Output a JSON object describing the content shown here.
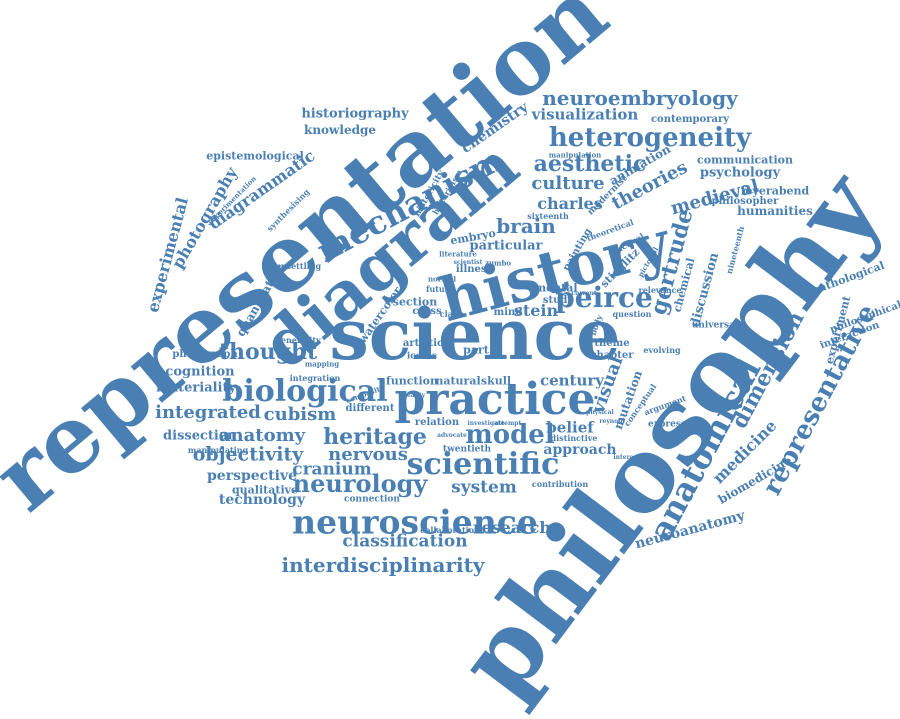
{
  "cloud": {
    "color": "#4a7fb3",
    "words": [
      {
        "text": "representation",
        "rot": -40
      },
      {
        "text": "philosophy",
        "rot": -53
      },
      {
        "text": "science",
        "rot": 0
      },
      {
        "text": "history",
        "rot": -15
      },
      {
        "text": "diagram",
        "rot": -40
      },
      {
        "text": "practice",
        "rot": 0
      },
      {
        "text": "mechanism",
        "rot": -28
      },
      {
        "text": "heterogeneity",
        "rot": 0
      },
      {
        "text": "neuroscience",
        "rot": 0
      },
      {
        "text": "biological",
        "rot": 0
      },
      {
        "text": "scientific",
        "rot": 0
      },
      {
        "text": "anatomical",
        "rot": -62
      },
      {
        "text": "representative",
        "rot": -62
      },
      {
        "text": "dimension",
        "rot": -62
      },
      {
        "text": "neuroembryology",
        "rot": 0
      },
      {
        "text": "peirce",
        "rot": 0
      },
      {
        "text": "model",
        "rot": 0
      },
      {
        "text": "heritage",
        "rot": 0
      },
      {
        "text": "neurology",
        "rot": 0
      },
      {
        "text": "thought",
        "rot": 0
      },
      {
        "text": "aesthetic",
        "rot": 0
      },
      {
        "text": "interdisciplinarity",
        "rot": 0
      },
      {
        "text": "classification",
        "rot": 0
      },
      {
        "text": "objectivity",
        "rot": 0
      },
      {
        "text": "nervous",
        "rot": 0
      },
      {
        "text": "integrated",
        "rot": 0
      },
      {
        "text": "cubism",
        "rot": 0
      },
      {
        "text": "anatomy",
        "rot": 0
      },
      {
        "text": "cranium",
        "rot": 0
      },
      {
        "text": "system",
        "rot": 0
      },
      {
        "text": "research",
        "rot": 0
      },
      {
        "text": "culture",
        "rot": 0
      },
      {
        "text": "charles",
        "rot": 0
      },
      {
        "text": "theories",
        "rot": -28
      },
      {
        "text": "medieval",
        "rot": -15
      },
      {
        "text": "brain",
        "rot": 0
      },
      {
        "text": "gertrude",
        "rot": -75
      },
      {
        "text": "visual",
        "rot": -70
      },
      {
        "text": "medicine",
        "rot": -45
      },
      {
        "text": "stein",
        "rot": 0
      },
      {
        "text": "century",
        "rot": 0
      },
      {
        "text": "belief",
        "rot": 0
      },
      {
        "text": "approach",
        "rot": 0
      },
      {
        "text": "technology",
        "rot": 0
      },
      {
        "text": "perspective",
        "rot": 0
      },
      {
        "text": "qualitative",
        "rot": 0
      },
      {
        "text": "dissection",
        "rot": 0
      },
      {
        "text": "materiality",
        "rot": 0
      },
      {
        "text": "cognition",
        "rot": 0
      },
      {
        "text": "photograph",
        "rot": 0
      },
      {
        "text": "experimental",
        "rot": -75
      },
      {
        "text": "photography",
        "rot": -60
      },
      {
        "text": "diagrammatic",
        "rot": -35
      },
      {
        "text": "quantitative",
        "rot": -60
      },
      {
        "text": "historiography",
        "rot": 0
      },
      {
        "text": "knowledge",
        "rot": 0
      },
      {
        "text": "epistemological",
        "rot": 0
      },
      {
        "text": "chemistry",
        "rot": -35
      },
      {
        "text": "visualization",
        "rot": 0
      },
      {
        "text": "contemporary",
        "rot": 0
      },
      {
        "text": "communication",
        "rot": 0
      },
      {
        "text": "psychology",
        "rot": 0
      },
      {
        "text": "animation",
        "rot": -30
      },
      {
        "text": "feyerabend",
        "rot": 0
      },
      {
        "text": "philosopher",
        "rot": 0
      },
      {
        "text": "humanities",
        "rot": 0
      },
      {
        "text": "pathological",
        "rot": -20
      },
      {
        "text": "philosophical",
        "rot": -20
      },
      {
        "text": "interaction",
        "rot": -20
      },
      {
        "text": "experiment",
        "rot": -75
      },
      {
        "text": "biomedicine",
        "rot": -30
      },
      {
        "text": "neuroanatomy",
        "rot": -15
      },
      {
        "text": "discussion",
        "rot": -75
      },
      {
        "text": "chemical",
        "rot": -75
      },
      {
        "text": "mutation",
        "rot": -70
      },
      {
        "text": "particular",
        "rot": 0
      },
      {
        "text": "painting",
        "rot": -60
      },
      {
        "text": "stieglitz",
        "rot": -45
      },
      {
        "text": "mental",
        "rot": 0
      },
      {
        "text": "study",
        "rot": 0
      },
      {
        "text": "section",
        "rot": 0
      },
      {
        "text": "embryo",
        "rot": -10
      },
      {
        "text": "illness",
        "rot": 0
      },
      {
        "text": "watercolor",
        "rot": -55
      },
      {
        "text": "artistic",
        "rot": 0
      },
      {
        "text": "iconic",
        "rot": 0
      },
      {
        "text": "part",
        "rot": 0
      },
      {
        "text": "function",
        "rot": 0
      },
      {
        "text": "natural",
        "rot": 0
      },
      {
        "text": "skull",
        "rot": 0
      },
      {
        "text": "relation",
        "rot": 0
      },
      {
        "text": "twentieth",
        "rot": 0
      },
      {
        "text": "different",
        "rot": 0
      },
      {
        "text": "mind",
        "rot": 0
      },
      {
        "text": "cross",
        "rot": 0
      },
      {
        "text": "claim",
        "rot": 0
      },
      {
        "text": "future",
        "rot": 0
      },
      {
        "text": "historicity",
        "rot": -60
      },
      {
        "text": "historicism",
        "rot": -60
      },
      {
        "text": "modernist",
        "rot": -45
      },
      {
        "text": "theoretical",
        "rot": -20
      },
      {
        "text": "distinctive",
        "rot": 0
      },
      {
        "text": "expression",
        "rot": 0
      },
      {
        "text": "argument",
        "rot": -20
      },
      {
        "text": "universal",
        "rot": 0
      },
      {
        "text": "theme",
        "rot": 0
      },
      {
        "text": "chapter",
        "rot": 0
      },
      {
        "text": "evolving",
        "rot": 0
      },
      {
        "text": "question",
        "rot": 0
      },
      {
        "text": "relevance",
        "rot": 0
      },
      {
        "text": "integration",
        "rot": 0
      },
      {
        "text": "generality",
        "rot": 0
      },
      {
        "text": "manipulating",
        "rot": 0
      },
      {
        "text": "connection",
        "rot": 0
      },
      {
        "text": "collaboration",
        "rot": 0
      },
      {
        "text": "contribution",
        "rot": 0
      },
      {
        "text": "synthesising",
        "rot": -45
      },
      {
        "text": "experimentation",
        "rot": -45
      },
      {
        "text": "unsettling",
        "rot": 0
      },
      {
        "text": "manipulation",
        "rot": 0
      },
      {
        "text": "nineteenth",
        "rot": -75
      },
      {
        "text": "sixteenth",
        "rot": 0
      },
      {
        "text": "literature",
        "rot": 0
      },
      {
        "text": "scientist",
        "rot": 0
      },
      {
        "text": "zumbo",
        "rot": 0
      },
      {
        "text": "normal",
        "rot": 0
      },
      {
        "text": "mapping",
        "rot": 0
      },
      {
        "text": "composite",
        "rot": -20
      },
      {
        "text": "beauty",
        "rot": 0
      },
      {
        "text": "conceptual",
        "rot": -55
      },
      {
        "text": "visuality",
        "rot": 0
      },
      {
        "text": "advocate",
        "rot": 0
      },
      {
        "text": "investigate",
        "rot": 0
      },
      {
        "text": "attempt",
        "rot": 0
      },
      {
        "text": "current",
        "rot": 0
      },
      {
        "text": "reynold",
        "rot": 0
      },
      {
        "text": "physical",
        "rot": 0
      },
      {
        "text": "interesting",
        "rot": 0
      },
      {
        "text": "body",
        "rot": -70
      },
      {
        "text": "practical",
        "rot": -30
      },
      {
        "text": "pictorial",
        "rot": -60
      }
    ]
  }
}
